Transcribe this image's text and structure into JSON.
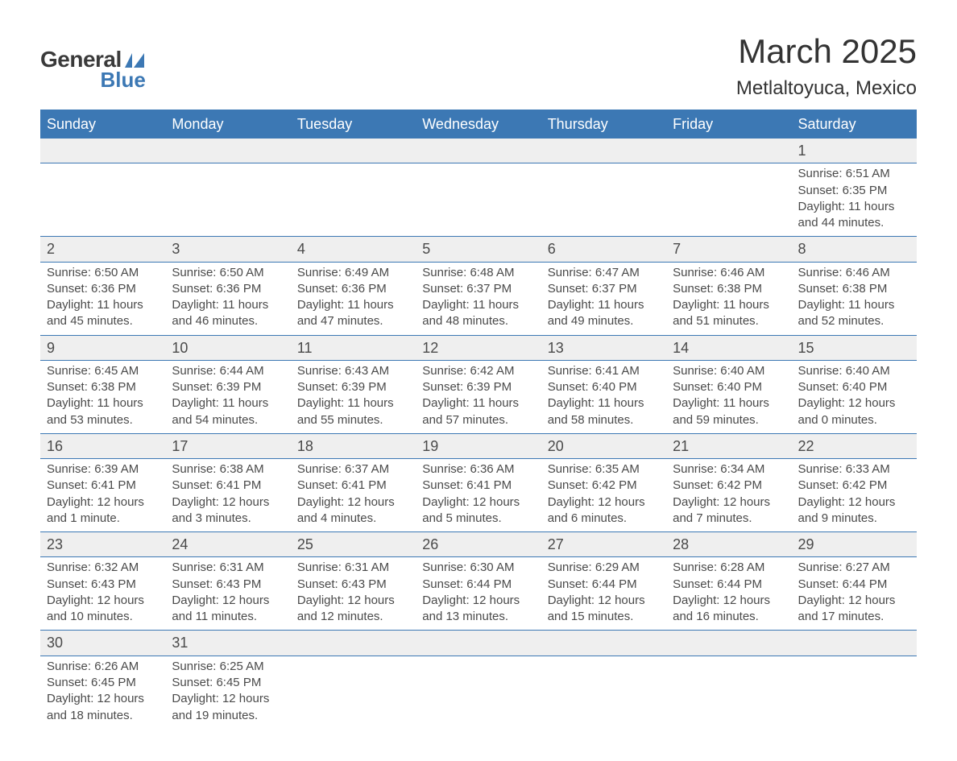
{
  "logo": {
    "general": "General",
    "blue": "Blue"
  },
  "title": "March 2025",
  "location": "Metlaltoyuca, Mexico",
  "colors": {
    "header_bg": "#3c78b4",
    "header_text": "#ffffff",
    "daynum_bg": "#efefef",
    "text": "#4a4a4a",
    "border": "#3c78b4"
  },
  "day_names": [
    "Sunday",
    "Monday",
    "Tuesday",
    "Wednesday",
    "Thursday",
    "Friday",
    "Saturday"
  ],
  "weeks": [
    [
      null,
      null,
      null,
      null,
      null,
      null,
      {
        "n": "1",
        "sr": "Sunrise: 6:51 AM",
        "ss": "Sunset: 6:35 PM",
        "dl1": "Daylight: 11 hours",
        "dl2": "and 44 minutes."
      }
    ],
    [
      {
        "n": "2",
        "sr": "Sunrise: 6:50 AM",
        "ss": "Sunset: 6:36 PM",
        "dl1": "Daylight: 11 hours",
        "dl2": "and 45 minutes."
      },
      {
        "n": "3",
        "sr": "Sunrise: 6:50 AM",
        "ss": "Sunset: 6:36 PM",
        "dl1": "Daylight: 11 hours",
        "dl2": "and 46 minutes."
      },
      {
        "n": "4",
        "sr": "Sunrise: 6:49 AM",
        "ss": "Sunset: 6:36 PM",
        "dl1": "Daylight: 11 hours",
        "dl2": "and 47 minutes."
      },
      {
        "n": "5",
        "sr": "Sunrise: 6:48 AM",
        "ss": "Sunset: 6:37 PM",
        "dl1": "Daylight: 11 hours",
        "dl2": "and 48 minutes."
      },
      {
        "n": "6",
        "sr": "Sunrise: 6:47 AM",
        "ss": "Sunset: 6:37 PM",
        "dl1": "Daylight: 11 hours",
        "dl2": "and 49 minutes."
      },
      {
        "n": "7",
        "sr": "Sunrise: 6:46 AM",
        "ss": "Sunset: 6:38 PM",
        "dl1": "Daylight: 11 hours",
        "dl2": "and 51 minutes."
      },
      {
        "n": "8",
        "sr": "Sunrise: 6:46 AM",
        "ss": "Sunset: 6:38 PM",
        "dl1": "Daylight: 11 hours",
        "dl2": "and 52 minutes."
      }
    ],
    [
      {
        "n": "9",
        "sr": "Sunrise: 6:45 AM",
        "ss": "Sunset: 6:38 PM",
        "dl1": "Daylight: 11 hours",
        "dl2": "and 53 minutes."
      },
      {
        "n": "10",
        "sr": "Sunrise: 6:44 AM",
        "ss": "Sunset: 6:39 PM",
        "dl1": "Daylight: 11 hours",
        "dl2": "and 54 minutes."
      },
      {
        "n": "11",
        "sr": "Sunrise: 6:43 AM",
        "ss": "Sunset: 6:39 PM",
        "dl1": "Daylight: 11 hours",
        "dl2": "and 55 minutes."
      },
      {
        "n": "12",
        "sr": "Sunrise: 6:42 AM",
        "ss": "Sunset: 6:39 PM",
        "dl1": "Daylight: 11 hours",
        "dl2": "and 57 minutes."
      },
      {
        "n": "13",
        "sr": "Sunrise: 6:41 AM",
        "ss": "Sunset: 6:40 PM",
        "dl1": "Daylight: 11 hours",
        "dl2": "and 58 minutes."
      },
      {
        "n": "14",
        "sr": "Sunrise: 6:40 AM",
        "ss": "Sunset: 6:40 PM",
        "dl1": "Daylight: 11 hours",
        "dl2": "and 59 minutes."
      },
      {
        "n": "15",
        "sr": "Sunrise: 6:40 AM",
        "ss": "Sunset: 6:40 PM",
        "dl1": "Daylight: 12 hours",
        "dl2": "and 0 minutes."
      }
    ],
    [
      {
        "n": "16",
        "sr": "Sunrise: 6:39 AM",
        "ss": "Sunset: 6:41 PM",
        "dl1": "Daylight: 12 hours",
        "dl2": "and 1 minute."
      },
      {
        "n": "17",
        "sr": "Sunrise: 6:38 AM",
        "ss": "Sunset: 6:41 PM",
        "dl1": "Daylight: 12 hours",
        "dl2": "and 3 minutes."
      },
      {
        "n": "18",
        "sr": "Sunrise: 6:37 AM",
        "ss": "Sunset: 6:41 PM",
        "dl1": "Daylight: 12 hours",
        "dl2": "and 4 minutes."
      },
      {
        "n": "19",
        "sr": "Sunrise: 6:36 AM",
        "ss": "Sunset: 6:41 PM",
        "dl1": "Daylight: 12 hours",
        "dl2": "and 5 minutes."
      },
      {
        "n": "20",
        "sr": "Sunrise: 6:35 AM",
        "ss": "Sunset: 6:42 PM",
        "dl1": "Daylight: 12 hours",
        "dl2": "and 6 minutes."
      },
      {
        "n": "21",
        "sr": "Sunrise: 6:34 AM",
        "ss": "Sunset: 6:42 PM",
        "dl1": "Daylight: 12 hours",
        "dl2": "and 7 minutes."
      },
      {
        "n": "22",
        "sr": "Sunrise: 6:33 AM",
        "ss": "Sunset: 6:42 PM",
        "dl1": "Daylight: 12 hours",
        "dl2": "and 9 minutes."
      }
    ],
    [
      {
        "n": "23",
        "sr": "Sunrise: 6:32 AM",
        "ss": "Sunset: 6:43 PM",
        "dl1": "Daylight: 12 hours",
        "dl2": "and 10 minutes."
      },
      {
        "n": "24",
        "sr": "Sunrise: 6:31 AM",
        "ss": "Sunset: 6:43 PM",
        "dl1": "Daylight: 12 hours",
        "dl2": "and 11 minutes."
      },
      {
        "n": "25",
        "sr": "Sunrise: 6:31 AM",
        "ss": "Sunset: 6:43 PM",
        "dl1": "Daylight: 12 hours",
        "dl2": "and 12 minutes."
      },
      {
        "n": "26",
        "sr": "Sunrise: 6:30 AM",
        "ss": "Sunset: 6:44 PM",
        "dl1": "Daylight: 12 hours",
        "dl2": "and 13 minutes."
      },
      {
        "n": "27",
        "sr": "Sunrise: 6:29 AM",
        "ss": "Sunset: 6:44 PM",
        "dl1": "Daylight: 12 hours",
        "dl2": "and 15 minutes."
      },
      {
        "n": "28",
        "sr": "Sunrise: 6:28 AM",
        "ss": "Sunset: 6:44 PM",
        "dl1": "Daylight: 12 hours",
        "dl2": "and 16 minutes."
      },
      {
        "n": "29",
        "sr": "Sunrise: 6:27 AM",
        "ss": "Sunset: 6:44 PM",
        "dl1": "Daylight: 12 hours",
        "dl2": "and 17 minutes."
      }
    ],
    [
      {
        "n": "30",
        "sr": "Sunrise: 6:26 AM",
        "ss": "Sunset: 6:45 PM",
        "dl1": "Daylight: 12 hours",
        "dl2": "and 18 minutes."
      },
      {
        "n": "31",
        "sr": "Sunrise: 6:25 AM",
        "ss": "Sunset: 6:45 PM",
        "dl1": "Daylight: 12 hours",
        "dl2": "and 19 minutes."
      },
      null,
      null,
      null,
      null,
      null
    ]
  ]
}
